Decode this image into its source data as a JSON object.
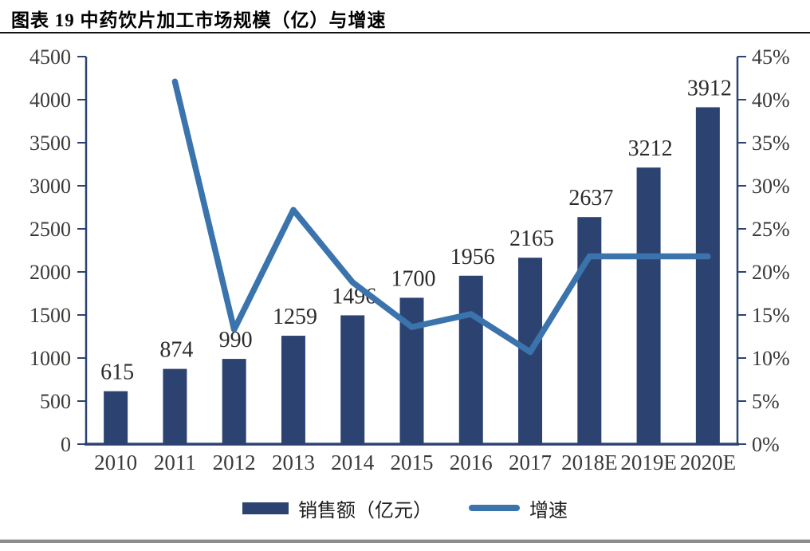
{
  "header": {
    "title": "图表 19 中药饮片加工市场规模（亿）与增速"
  },
  "legend": {
    "bar_label": "销售额（亿元）",
    "line_label": "增速"
  },
  "colors": {
    "bar": "#2C4372",
    "line": "#3B74AC",
    "axis": "#2C4372",
    "tick_label": "#3A3A3A",
    "data_label": "#2B2B2B",
    "title": "#000000",
    "divider": "#8C8C8C"
  },
  "chart_data": {
    "type": "bar",
    "subtype": "combo-bar-line-dual-axis",
    "title": "图表 19 中药饮片加工市场规模（亿）与增速",
    "categories": [
      "2010",
      "2011",
      "2012",
      "2013",
      "2014",
      "2015",
      "2016",
      "2017",
      "2018E",
      "2019E",
      "2020E"
    ],
    "series": [
      {
        "name": "销售额（亿元）",
        "type": "bar",
        "axis": "left",
        "values": [
          615,
          874,
          990,
          1259,
          1496,
          1700,
          1956,
          2165,
          2637,
          3212,
          3912
        ],
        "data_labels": [
          "615",
          "874",
          "990",
          "1259",
          "1496",
          "1700",
          "1956",
          "2165",
          "2637",
          "3212",
          "3912"
        ]
      },
      {
        "name": "增速",
        "type": "line",
        "axis": "right",
        "values": [
          null,
          42.1,
          13.3,
          27.2,
          18.8,
          13.6,
          15.1,
          10.7,
          21.8,
          21.8,
          21.8
        ]
      }
    ],
    "left_axis": {
      "min": 0,
      "max": 4500,
      "step": 500,
      "tick_labels": [
        "0",
        "500",
        "1000",
        "1500",
        "2000",
        "2500",
        "3000",
        "3500",
        "4000",
        "4500"
      ]
    },
    "right_axis": {
      "min": 0,
      "max": 45,
      "step": 5,
      "tick_labels": [
        "0%",
        "5%",
        "10%",
        "15%",
        "20%",
        "25%",
        "30%",
        "35%",
        "40%",
        "45%"
      ]
    },
    "grid": false,
    "legend_position": "bottom",
    "xlabel": "",
    "ylabel_left": "",
    "ylabel_right": ""
  }
}
